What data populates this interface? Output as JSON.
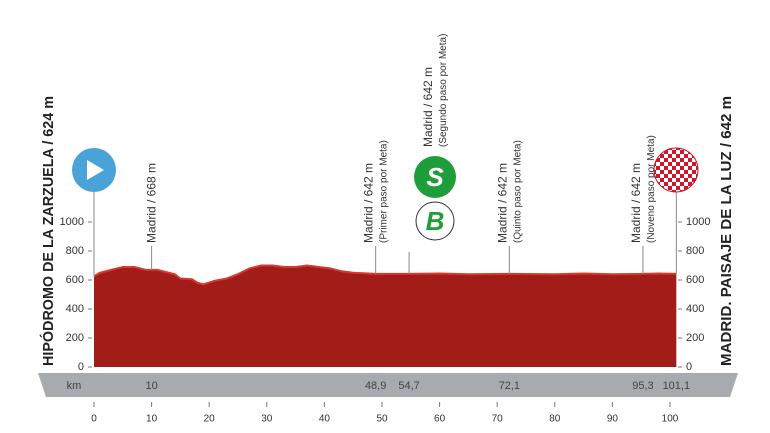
{
  "chart_data": {
    "type": "area",
    "start": {
      "label": "HIPÓDROMO DE LA ZARZUELA / 624 m"
    },
    "finish": {
      "label": "MADRID. PAISAJE DE LA LUZ / 642 m",
      "km": {
        "value": 101.1,
        "label": "101,1"
      }
    },
    "km_axis_label": "km",
    "points": [
      {
        "km": 10,
        "name": "Madrid / 668 m"
      },
      {
        "km": {
          "value": 48.9,
          "label": "48,9"
        },
        "name": "Madrid / 642 m",
        "note": "(Primer paso por Meta)"
      },
      {
        "km": {
          "value": 54.7,
          "label": "54,7"
        },
        "name": "Madrid / 642 m",
        "note": "(Segundo paso por Meta)"
      },
      {
        "km": {
          "value": 72.1,
          "label": "72,1"
        },
        "name": "Madrid / 642 m",
        "note": "(Quinto paso por Meta)"
      },
      {
        "km": {
          "value": 95.3,
          "label": "95,3"
        },
        "name": "Madrid / 642 m",
        "note": "(Noveno paso por Meta)"
      }
    ],
    "sprint": "S",
    "bonus": "B",
    "x": [
      0,
      1,
      3,
      5,
      7,
      9,
      11,
      12,
      14,
      15,
      17,
      18,
      19,
      21,
      23,
      25,
      27,
      29,
      31,
      33,
      35,
      37,
      39,
      41,
      43,
      45,
      48.9,
      54.7,
      60,
      65,
      72.1,
      80,
      85,
      90,
      95.3,
      98,
      101.1
    ],
    "values": [
      624,
      650,
      670,
      690,
      690,
      670,
      670,
      660,
      640,
      610,
      605,
      580,
      570,
      595,
      610,
      640,
      680,
      700,
      700,
      690,
      690,
      700,
      690,
      680,
      660,
      650,
      642,
      642,
      645,
      640,
      642,
      640,
      645,
      640,
      642,
      645,
      642
    ],
    "color": "#a21c18",
    "xlim": [
      0,
      100
    ],
    "xticks": [
      0,
      10,
      20,
      30,
      40,
      50,
      60,
      70,
      80,
      90,
      100
    ],
    "ylim": [
      0,
      1000
    ],
    "yticks": [
      0,
      200,
      400,
      600,
      800,
      1000
    ]
  }
}
